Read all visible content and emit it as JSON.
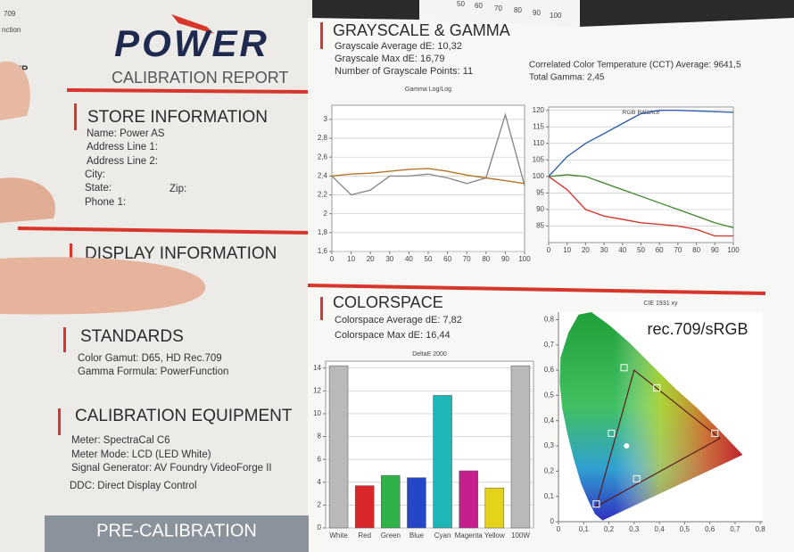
{
  "background_text": [
    "709",
    "nction",
    "UP",
    "50",
    "60",
    "70",
    "80",
    "90",
    "100"
  ],
  "document": {
    "logo": "POWER",
    "report_title": "CALIBRATION REPORT",
    "store": {
      "heading": "STORE INFORMATION",
      "lines": [
        "Name: Power AS",
        "Address Line 1:",
        "Address Line 2:",
        "City:",
        "State:",
        "Zip:",
        "Phone 1:"
      ]
    },
    "display": {
      "heading": "DISPLAY INFORMATION"
    },
    "standards": {
      "heading": "STANDARDS",
      "lines": [
        "Color Gamut: D65, HD Rec.709",
        "Gamma Formula: PowerFunction"
      ]
    },
    "equipment": {
      "heading": "CALIBRATION EQUIPMENT",
      "lines": [
        "Meter: SpectraCal C6",
        "Meter Mode: LCD (LED White)",
        "Signal Generator: AV Foundry VideoForge II",
        "DDC: Direct Display Control"
      ]
    },
    "footer": "PRE-CALIBRATION"
  },
  "grayscale_gamma": {
    "title": "GRAYSCALE & GAMMA",
    "stats": [
      "Grayscale Average dE: 10,32",
      "Grayscale Max dE: 16,79",
      "Number of Grayscale Points: 11"
    ],
    "cct": "Correlated Color Temperature (CCT) Average: 9641,5",
    "gamma": "Total Gamma: 2,45"
  },
  "colorspace": {
    "title": "COLORSPACE",
    "stats": [
      "Colorspace Average dE: 7,82",
      "Colorspace Max dE: 16,44"
    ]
  },
  "chart_data": [
    {
      "type": "line",
      "title": "Gamma Log/Log",
      "x": [
        0,
        10,
        20,
        30,
        40,
        50,
        60,
        70,
        80,
        90,
        100
      ],
      "series": [
        {
          "color": "#8a8a8a",
          "values": [
            2.4,
            2.2,
            2.25,
            2.4,
            2.4,
            2.42,
            2.38,
            2.32,
            2.38,
            3.05,
            2.3
          ]
        },
        {
          "color": "#b8752a",
          "values": [
            2.4,
            2.42,
            2.43,
            2.45,
            2.47,
            2.48,
            2.45,
            2.41,
            2.38,
            2.35,
            2.32
          ]
        }
      ],
      "xlim": [
        0,
        100
      ],
      "xticks": [
        0,
        10,
        20,
        30,
        40,
        50,
        60,
        70,
        80,
        90,
        100
      ],
      "ylim": [
        1.6,
        3.15
      ],
      "yticks": [
        {
          "value": 1.6,
          "label": "1,6"
        },
        {
          "value": 1.8,
          "label": "1,8"
        },
        2,
        {
          "value": 2.2,
          "label": "2,2"
        },
        {
          "value": 2.4,
          "label": "2,4"
        },
        {
          "value": 2.6,
          "label": "2,6"
        },
        {
          "value": 2.8,
          "label": "2,8"
        },
        3
      ],
      "grid": true
    },
    {
      "type": "line",
      "title": "RGB Balance",
      "x": [
        0,
        10,
        20,
        30,
        40,
        50,
        60,
        70,
        80,
        90,
        100
      ],
      "series": [
        {
          "color": "#2e5fa8",
          "values": [
            100,
            106,
            110,
            113,
            116,
            119,
            120,
            120,
            119.8,
            119.6,
            119.4
          ]
        },
        {
          "color": "#4e8a3a",
          "values": [
            100,
            100.5,
            100,
            98,
            96,
            94,
            92,
            90,
            88,
            86,
            84.5
          ]
        },
        {
          "color": "#d33a32",
          "values": [
            100,
            96,
            90,
            88,
            87,
            86,
            85.5,
            85,
            84,
            82,
            82
          ]
        }
      ],
      "xlim": [
        0,
        100
      ],
      "xticks": [
        0,
        10,
        20,
        30,
        40,
        50,
        60,
        70,
        80,
        90,
        100
      ],
      "ylim": [
        80,
        121
      ],
      "yticks": [
        85,
        90,
        95,
        100,
        105,
        110,
        115,
        120
      ],
      "grid": true
    },
    {
      "type": "bar",
      "title": "DeltaE 2000",
      "categories": [
        "White",
        "Red",
        "Green",
        "Blue",
        "Cyan",
        "Magenta",
        "Yellow",
        "100W"
      ],
      "values": [
        14.2,
        3.7,
        4.6,
        4.4,
        11.6,
        5,
        3.5,
        14.2
      ],
      "colors": [
        "#b9b9b9",
        "#d9262b",
        "#2fb24a",
        "#2646c8",
        "#1fb6b8",
        "#c41f8d",
        "#e5d21a",
        "#b9b9b9"
      ],
      "ylim": [
        0,
        14.6
      ],
      "yticks": [
        0,
        2,
        4,
        6,
        8,
        10,
        12,
        14
      ],
      "grid": true
    },
    {
      "type": "scatter",
      "title": "CIE 1931 xy",
      "annotation": "rec.709/sRGB",
      "series": [
        {
          "style": "polygon",
          "color": "#5a1a1a",
          "x": [
            0.64,
            0.3,
            0.15
          ],
          "values": [
            0.33,
            0.6,
            0.06
          ]
        },
        {
          "style": "square",
          "color": "#ffffff",
          "x": [
            0.62,
            0.26,
            0.15,
            0.21,
            0.31,
            0.39
          ],
          "values": [
            0.35,
            0.61,
            0.07,
            0.35,
            0.17,
            0.53
          ]
        },
        {
          "style": "circle",
          "color": "#ffffff",
          "x": [
            0.27
          ],
          "values": [
            0.3
          ]
        }
      ],
      "xlim": [
        0,
        0.81
      ],
      "xticks": [
        0,
        {
          "value": 0.1,
          "label": "0,1"
        },
        {
          "value": 0.2,
          "label": "0,2"
        },
        {
          "value": 0.3,
          "label": "0,3"
        },
        {
          "value": 0.4,
          "label": "0,4"
        },
        {
          "value": 0.5,
          "label": "0,5"
        },
        {
          "value": 0.6,
          "label": "0,6"
        },
        {
          "value": 0.7,
          "label": "0,7"
        },
        {
          "value": 0.8,
          "label": "0,8"
        }
      ],
      "ylim": [
        0,
        0.83
      ],
      "yticks": [
        0,
        {
          "value": 0.1,
          "label": "0,1"
        },
        {
          "value": 0.2,
          "label": "0,2"
        },
        {
          "value": 0.3,
          "label": "0,3"
        },
        {
          "value": 0.4,
          "label": "0,4"
        },
        {
          "value": 0.5,
          "label": "0,5"
        },
        {
          "value": 0.6,
          "label": "0,6"
        },
        {
          "value": 0.7,
          "label": "0,7"
        },
        {
          "value": 0.8,
          "label": "0,8"
        }
      ],
      "grid": false
    }
  ]
}
